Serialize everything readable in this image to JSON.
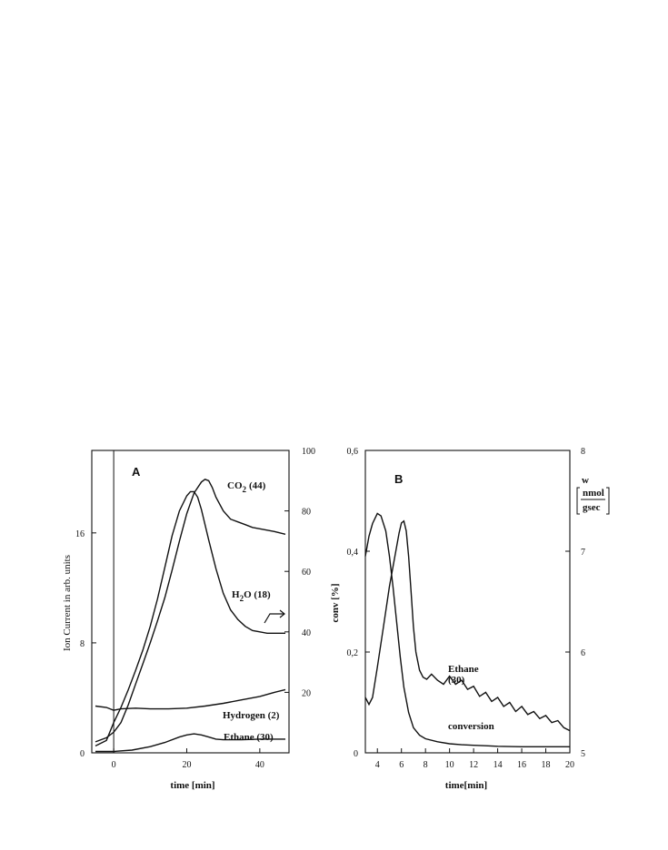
{
  "chart_data": [
    {
      "type": "line",
      "panel_label": "A",
      "xlabel": "time [min]",
      "ylabel": "Ion Current  in arb. units",
      "xlim": [
        -6,
        48
      ],
      "ylim": [
        0,
        22
      ],
      "y2lim": [
        0,
        100
      ],
      "x_ticks": [
        0,
        20,
        40
      ],
      "y_ticks": [
        0,
        8,
        16
      ],
      "y2_ticks": [
        20,
        40,
        60,
        80,
        100
      ],
      "series": [
        {
          "name": "CO",
          "subscript": "2",
          "suffix": "(44)",
          "x": [
            -5,
            -2,
            0,
            2,
            4,
            6,
            8,
            10,
            12,
            14,
            16,
            18,
            20,
            22,
            24,
            25,
            26,
            27,
            28,
            30,
            32,
            34,
            36,
            38,
            40,
            44,
            47
          ],
          "y": [
            0.8,
            1.1,
            1.5,
            2.2,
            3.5,
            5.0,
            6.5,
            8.0,
            9.6,
            11.3,
            13.3,
            15.4,
            17.4,
            18.9,
            19.7,
            19.9,
            19.8,
            19.3,
            18.6,
            17.6,
            17.0,
            16.8,
            16.6,
            16.4,
            16.3,
            16.1,
            15.9
          ]
        },
        {
          "name": "H",
          "subscript": "2",
          "suffix": "O  (18)",
          "x": [
            -5,
            -2,
            0,
            2,
            4,
            6,
            8,
            10,
            12,
            14,
            16,
            18,
            20,
            21,
            22,
            23,
            24,
            26,
            28,
            30,
            32,
            34,
            36,
            38,
            40,
            42,
            44,
            47
          ],
          "y": [
            0.5,
            0.9,
            2.2,
            3.3,
            4.6,
            6.0,
            7.5,
            9.2,
            11.2,
            13.5,
            15.8,
            17.6,
            18.7,
            19.0,
            19.0,
            18.6,
            17.7,
            15.5,
            13.4,
            11.6,
            10.4,
            9.7,
            9.2,
            8.9,
            8.8,
            8.7,
            8.7,
            8.7
          ]
        },
        {
          "name": "Hydrogen (2)",
          "x": [
            -5,
            -2,
            0,
            2,
            6,
            10,
            15,
            20,
            25,
            30,
            35,
            40,
            44,
            47
          ],
          "y": [
            3.4,
            3.3,
            3.1,
            3.2,
            3.25,
            3.2,
            3.2,
            3.25,
            3.4,
            3.6,
            3.85,
            4.1,
            4.4,
            4.6
          ]
        },
        {
          "name": "Ethane (30)",
          "x": [
            -5,
            0,
            5,
            10,
            14,
            18,
            20,
            22,
            24,
            26,
            28,
            30,
            35,
            40,
            44,
            47
          ],
          "y": [
            0.1,
            0.1,
            0.2,
            0.45,
            0.75,
            1.15,
            1.3,
            1.38,
            1.3,
            1.15,
            1.0,
            0.95,
            0.95,
            1.0,
            1.0,
            1.0
          ]
        }
      ]
    },
    {
      "type": "line",
      "panel_label": "B",
      "xlabel": "time[min]",
      "ylabel": "conv [%]",
      "y2label_top": "w",
      "y2label_num": "nmol",
      "y2label_den": "gsec",
      "xlim": [
        3,
        20
      ],
      "ylim": [
        0,
        0.6
      ],
      "y2lim": [
        5,
        8
      ],
      "x_ticks": [
        4,
        6,
        8,
        10,
        12,
        14,
        16,
        18,
        20
      ],
      "y_tick_labels": [
        "0",
        "0,2",
        "0,4",
        "0,6"
      ],
      "y2_tick_labels": [
        "5",
        "6",
        "7",
        "8"
      ],
      "series": [
        {
          "name": "conversion",
          "x": [
            3,
            3.3,
            3.6,
            4.0,
            4.3,
            4.7,
            5.0,
            5.3,
            5.6,
            5.9,
            6.2,
            6.6,
            7.0,
            7.5,
            8.0,
            9.0,
            10,
            11,
            12,
            13,
            14,
            16,
            18,
            20
          ],
          "y": [
            0.39,
            0.43,
            0.455,
            0.475,
            0.47,
            0.44,
            0.39,
            0.33,
            0.26,
            0.19,
            0.13,
            0.08,
            0.05,
            0.035,
            0.028,
            0.022,
            0.018,
            0.016,
            0.015,
            0.014,
            0.013,
            0.012,
            0.012,
            0.012
          ]
        },
        {
          "name": "Ethane",
          "second_line": "(30)",
          "x": [
            3,
            3.3,
            3.6,
            4.0,
            4.5,
            5.0,
            5.5,
            5.8,
            6.0,
            6.2,
            6.4,
            6.6,
            6.8,
            7.0,
            7.2,
            7.5,
            7.8,
            8.1,
            8.5,
            9.0,
            9.5,
            10,
            10.5,
            11,
            11.5,
            12,
            12.5,
            13,
            13.5,
            14,
            14.5,
            15,
            15.5,
            16,
            16.5,
            17,
            17.5,
            18,
            18.5,
            19,
            19.5,
            20
          ],
          "y": [
            5.55,
            5.48,
            5.55,
            5.85,
            6.25,
            6.65,
            6.98,
            7.18,
            7.28,
            7.3,
            7.2,
            6.95,
            6.6,
            6.25,
            6.0,
            5.82,
            5.75,
            5.73,
            5.78,
            5.72,
            5.68,
            5.76,
            5.68,
            5.72,
            5.63,
            5.66,
            5.56,
            5.6,
            5.51,
            5.55,
            5.46,
            5.5,
            5.41,
            5.46,
            5.38,
            5.41,
            5.34,
            5.37,
            5.3,
            5.32,
            5.25,
            5.22
          ]
        }
      ]
    }
  ]
}
